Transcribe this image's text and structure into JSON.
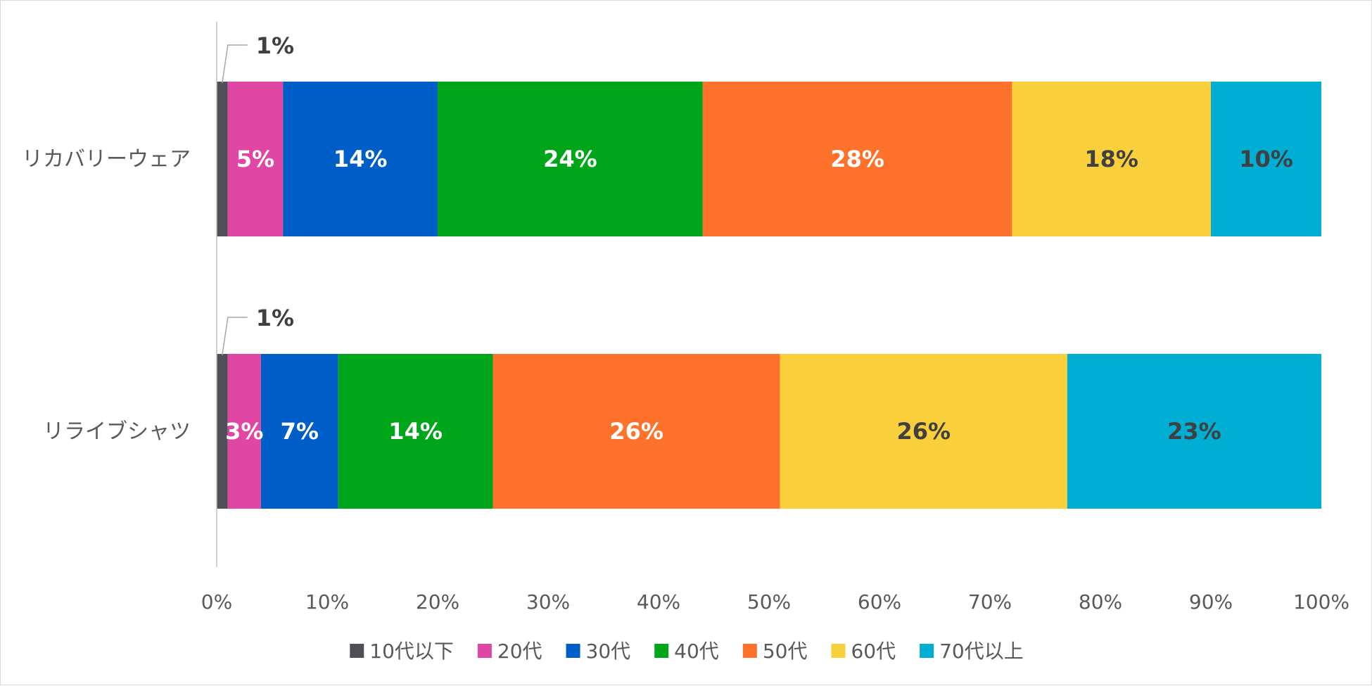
{
  "chart_data": {
    "type": "bar",
    "orientation": "horizontal",
    "stacked": "percent",
    "categories": [
      "リカバリーウェア",
      "リライブシャツ"
    ],
    "series": [
      {
        "name": "10代以下",
        "color": "#4f4f57",
        "values": [
          1,
          1
        ]
      },
      {
        "name": "20代",
        "color": "#e046a4",
        "values": [
          5,
          3
        ]
      },
      {
        "name": "30代",
        "color": "#005ec8",
        "values": [
          14,
          7
        ]
      },
      {
        "name": "40代",
        "color": "#00a619",
        "values": [
          24,
          14
        ]
      },
      {
        "name": "50代",
        "color": "#ff722b",
        "values": [
          28,
          26
        ]
      },
      {
        "name": "60代",
        "color": "#f9d03b",
        "values": [
          18,
          26
        ]
      },
      {
        "name": "70代以上",
        "color": "#00aed4",
        "values": [
          10,
          23
        ]
      }
    ],
    "data_labels": [
      [
        "1%",
        "5%",
        "14%",
        "24%",
        "28%",
        "18%",
        "10%"
      ],
      [
        "1%",
        "3%",
        "7%",
        "14%",
        "26%",
        "26%",
        "23%"
      ]
    ],
    "data_label_colors": [
      "#404040",
      "#ffffff",
      "#ffffff",
      "#ffffff",
      "#ffffff",
      "#404040",
      "#404040"
    ],
    "x_ticks": [
      "0%",
      "10%",
      "20%",
      "30%",
      "40%",
      "50%",
      "60%",
      "70%",
      "80%",
      "90%",
      "100%"
    ],
    "xlim": [
      0,
      100
    ],
    "grid": false,
    "legend": "bottom"
  }
}
